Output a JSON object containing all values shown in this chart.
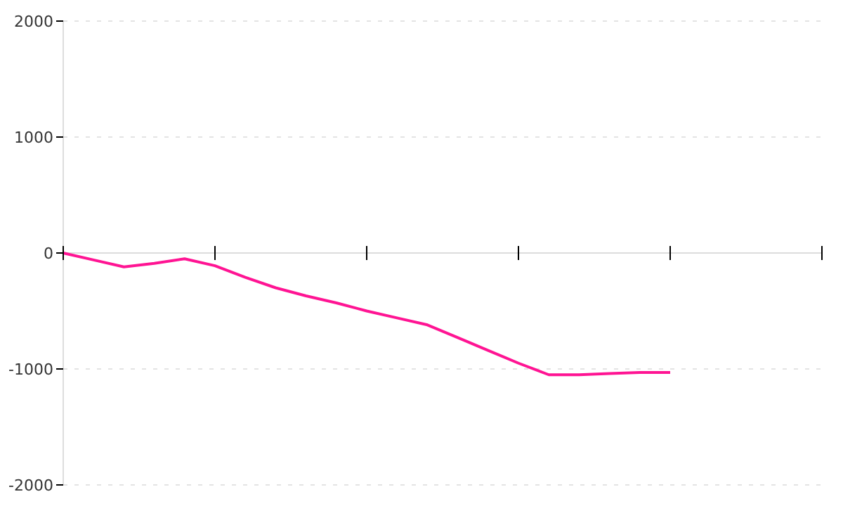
{
  "chart_data": {
    "type": "line",
    "categories": [
      null,
      null,
      null,
      null,
      null,
      null,
      null,
      null,
      null,
      null,
      null,
      null,
      null,
      null,
      null,
      null,
      null,
      null,
      null,
      null,
      null,
      null,
      null,
      null,
      null,
      null
    ],
    "series": [
      {
        "color": "#ff1493",
        "values": [
          0,
          -60,
          -120,
          -90,
          -50,
          -110,
          -210,
          -300,
          -370,
          -430,
          -500,
          -560,
          -620,
          -730,
          -840,
          -950,
          -1050,
          -1050,
          -1040,
          -1030,
          -1030,
          null,
          null,
          null,
          null,
          null
        ]
      }
    ],
    "ylim": [
      -2000,
      2000
    ],
    "yticks": [
      -2000,
      -1000,
      0,
      1000,
      2000
    ],
    "grid": "y",
    "marker": "none",
    "line_style": "solid"
  }
}
